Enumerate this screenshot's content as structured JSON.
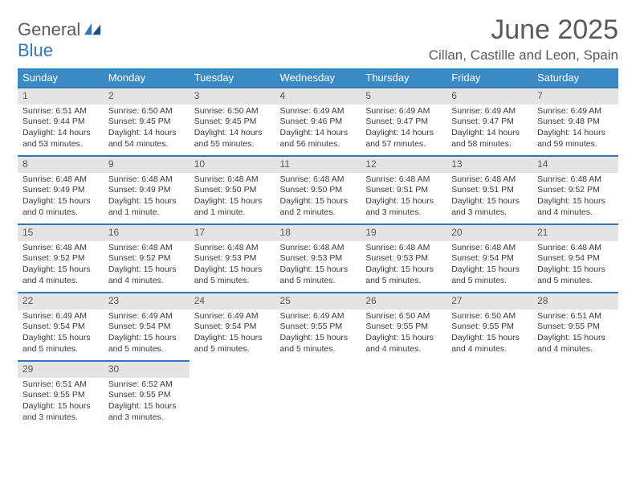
{
  "brand": {
    "part1": "General",
    "part2": "Blue"
  },
  "header": {
    "title": "June 2025",
    "location": "Cillan, Castille and Leon, Spain"
  },
  "colors": {
    "header_bg": "#3a8ac6",
    "rule": "#2f77b6",
    "daynum_bg": "#e4e4e4",
    "text": "#3a3a3a",
    "brand_blue": "#2f77b6"
  },
  "dayHeaders": [
    "Sunday",
    "Monday",
    "Tuesday",
    "Wednesday",
    "Thursday",
    "Friday",
    "Saturday"
  ],
  "weeks": [
    [
      {
        "n": "1",
        "sr": "Sunrise: 6:51 AM",
        "ss": "Sunset: 9:44 PM",
        "d1": "Daylight: 14 hours",
        "d2": "and 53 minutes."
      },
      {
        "n": "2",
        "sr": "Sunrise: 6:50 AM",
        "ss": "Sunset: 9:45 PM",
        "d1": "Daylight: 14 hours",
        "d2": "and 54 minutes."
      },
      {
        "n": "3",
        "sr": "Sunrise: 6:50 AM",
        "ss": "Sunset: 9:45 PM",
        "d1": "Daylight: 14 hours",
        "d2": "and 55 minutes."
      },
      {
        "n": "4",
        "sr": "Sunrise: 6:49 AM",
        "ss": "Sunset: 9:46 PM",
        "d1": "Daylight: 14 hours",
        "d2": "and 56 minutes."
      },
      {
        "n": "5",
        "sr": "Sunrise: 6:49 AM",
        "ss": "Sunset: 9:47 PM",
        "d1": "Daylight: 14 hours",
        "d2": "and 57 minutes."
      },
      {
        "n": "6",
        "sr": "Sunrise: 6:49 AM",
        "ss": "Sunset: 9:47 PM",
        "d1": "Daylight: 14 hours",
        "d2": "and 58 minutes."
      },
      {
        "n": "7",
        "sr": "Sunrise: 6:49 AM",
        "ss": "Sunset: 9:48 PM",
        "d1": "Daylight: 14 hours",
        "d2": "and 59 minutes."
      }
    ],
    [
      {
        "n": "8",
        "sr": "Sunrise: 6:48 AM",
        "ss": "Sunset: 9:49 PM",
        "d1": "Daylight: 15 hours",
        "d2": "and 0 minutes."
      },
      {
        "n": "9",
        "sr": "Sunrise: 6:48 AM",
        "ss": "Sunset: 9:49 PM",
        "d1": "Daylight: 15 hours",
        "d2": "and 1 minute."
      },
      {
        "n": "10",
        "sr": "Sunrise: 6:48 AM",
        "ss": "Sunset: 9:50 PM",
        "d1": "Daylight: 15 hours",
        "d2": "and 1 minute."
      },
      {
        "n": "11",
        "sr": "Sunrise: 6:48 AM",
        "ss": "Sunset: 9:50 PM",
        "d1": "Daylight: 15 hours",
        "d2": "and 2 minutes."
      },
      {
        "n": "12",
        "sr": "Sunrise: 6:48 AM",
        "ss": "Sunset: 9:51 PM",
        "d1": "Daylight: 15 hours",
        "d2": "and 3 minutes."
      },
      {
        "n": "13",
        "sr": "Sunrise: 6:48 AM",
        "ss": "Sunset: 9:51 PM",
        "d1": "Daylight: 15 hours",
        "d2": "and 3 minutes."
      },
      {
        "n": "14",
        "sr": "Sunrise: 6:48 AM",
        "ss": "Sunset: 9:52 PM",
        "d1": "Daylight: 15 hours",
        "d2": "and 4 minutes."
      }
    ],
    [
      {
        "n": "15",
        "sr": "Sunrise: 6:48 AM",
        "ss": "Sunset: 9:52 PM",
        "d1": "Daylight: 15 hours",
        "d2": "and 4 minutes."
      },
      {
        "n": "16",
        "sr": "Sunrise: 6:48 AM",
        "ss": "Sunset: 9:52 PM",
        "d1": "Daylight: 15 hours",
        "d2": "and 4 minutes."
      },
      {
        "n": "17",
        "sr": "Sunrise: 6:48 AM",
        "ss": "Sunset: 9:53 PM",
        "d1": "Daylight: 15 hours",
        "d2": "and 5 minutes."
      },
      {
        "n": "18",
        "sr": "Sunrise: 6:48 AM",
        "ss": "Sunset: 9:53 PM",
        "d1": "Daylight: 15 hours",
        "d2": "and 5 minutes."
      },
      {
        "n": "19",
        "sr": "Sunrise: 6:48 AM",
        "ss": "Sunset: 9:53 PM",
        "d1": "Daylight: 15 hours",
        "d2": "and 5 minutes."
      },
      {
        "n": "20",
        "sr": "Sunrise: 6:48 AM",
        "ss": "Sunset: 9:54 PM",
        "d1": "Daylight: 15 hours",
        "d2": "and 5 minutes."
      },
      {
        "n": "21",
        "sr": "Sunrise: 6:48 AM",
        "ss": "Sunset: 9:54 PM",
        "d1": "Daylight: 15 hours",
        "d2": "and 5 minutes."
      }
    ],
    [
      {
        "n": "22",
        "sr": "Sunrise: 6:49 AM",
        "ss": "Sunset: 9:54 PM",
        "d1": "Daylight: 15 hours",
        "d2": "and 5 minutes."
      },
      {
        "n": "23",
        "sr": "Sunrise: 6:49 AM",
        "ss": "Sunset: 9:54 PM",
        "d1": "Daylight: 15 hours",
        "d2": "and 5 minutes."
      },
      {
        "n": "24",
        "sr": "Sunrise: 6:49 AM",
        "ss": "Sunset: 9:54 PM",
        "d1": "Daylight: 15 hours",
        "d2": "and 5 minutes."
      },
      {
        "n": "25",
        "sr": "Sunrise: 6:49 AM",
        "ss": "Sunset: 9:55 PM",
        "d1": "Daylight: 15 hours",
        "d2": "and 5 minutes."
      },
      {
        "n": "26",
        "sr": "Sunrise: 6:50 AM",
        "ss": "Sunset: 9:55 PM",
        "d1": "Daylight: 15 hours",
        "d2": "and 4 minutes."
      },
      {
        "n": "27",
        "sr": "Sunrise: 6:50 AM",
        "ss": "Sunset: 9:55 PM",
        "d1": "Daylight: 15 hours",
        "d2": "and 4 minutes."
      },
      {
        "n": "28",
        "sr": "Sunrise: 6:51 AM",
        "ss": "Sunset: 9:55 PM",
        "d1": "Daylight: 15 hours",
        "d2": "and 4 minutes."
      }
    ],
    [
      {
        "n": "29",
        "sr": "Sunrise: 6:51 AM",
        "ss": "Sunset: 9:55 PM",
        "d1": "Daylight: 15 hours",
        "d2": "and 3 minutes."
      },
      {
        "n": "30",
        "sr": "Sunrise: 6:52 AM",
        "ss": "Sunset: 9:55 PM",
        "d1": "Daylight: 15 hours",
        "d2": "and 3 minutes."
      },
      {
        "empty": true
      },
      {
        "empty": true
      },
      {
        "empty": true
      },
      {
        "empty": true
      },
      {
        "empty": true
      }
    ]
  ]
}
